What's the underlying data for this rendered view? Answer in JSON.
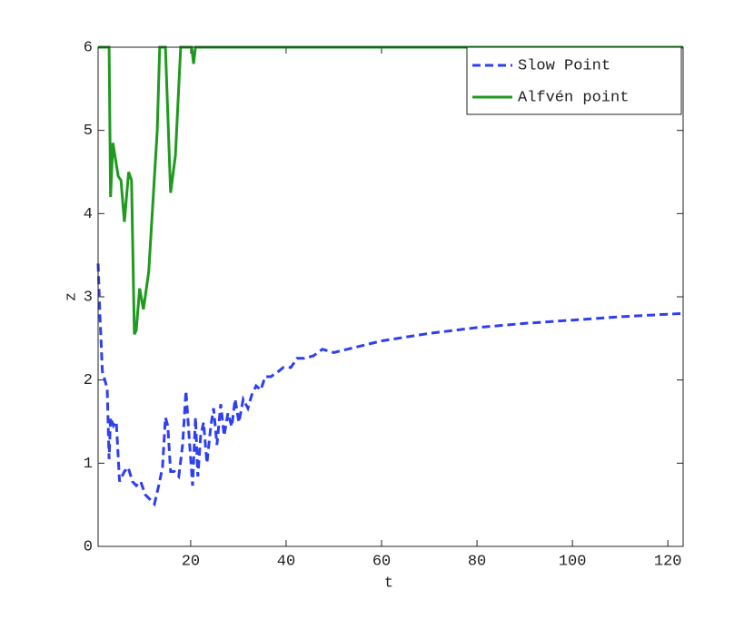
{
  "chart_data": {
    "type": "line",
    "xlabel": "t",
    "ylabel": "z",
    "xlim": [
      0.6,
      123.2
    ],
    "ylim": [
      0,
      6
    ],
    "xticks": [
      20,
      40,
      60,
      80,
      100,
      120
    ],
    "yticks": [
      0,
      1,
      2,
      3,
      4,
      5,
      6
    ],
    "legend": "upper right",
    "series": [
      {
        "name": "Slow Point",
        "color": "#2e3ff0",
        "dash": true,
        "x": [
          0.6,
          1,
          1.5,
          2.5,
          2.9,
          3.2,
          3.8,
          4.4,
          5.1,
          6.1,
          6.9,
          7.8,
          8.6,
          9.5,
          10.5,
          11.4,
          12.4,
          13.3,
          14.1,
          14.7,
          15.2,
          15.8,
          16.6,
          17.5,
          18.3,
          19,
          19.6,
          20.4,
          21,
          21.5,
          22.1,
          22.7,
          23.4,
          24.2,
          24.8,
          25.5,
          26.3,
          27,
          27.8,
          28.6,
          29.3,
          30.1,
          31,
          32,
          32.8,
          33.7,
          34.7,
          35.6,
          36.8,
          38.1,
          39.4,
          41,
          42.3,
          43.8,
          45.7,
          47.6,
          50,
          60,
          70,
          80,
          90,
          100,
          110,
          123.2
        ],
        "values": [
          3.4,
          2.75,
          2.1,
          1.9,
          1.05,
          1.55,
          1.45,
          1.5,
          0.78,
          0.9,
          0.95,
          0.78,
          0.73,
          0.78,
          0.62,
          0.57,
          0.51,
          0.73,
          0.95,
          1.55,
          1.45,
          0.9,
          0.9,
          0.84,
          1.22,
          1.87,
          1.38,
          0.73,
          1.55,
          0.84,
          1.33,
          1.49,
          1.0,
          1.44,
          1.66,
          1.22,
          1.71,
          1.33,
          1.6,
          1.44,
          1.77,
          1.49,
          1.77,
          1.66,
          1.82,
          1.93,
          1.88,
          2.04,
          2.04,
          2.09,
          2.15,
          2.15,
          2.26,
          2.26,
          2.29,
          2.37,
          2.33,
          2.47,
          2.56,
          2.63,
          2.68,
          2.72,
          2.76,
          2.8
        ]
      },
      {
        "name": "Alfvén point",
        "color": "#1f9a1f",
        "dash": false,
        "x": [
          0.6,
          2.9,
          3.2,
          3.7,
          4.8,
          5.4,
          6.1,
          7,
          7.6,
          8.2,
          8.6,
          9.3,
          10.1,
          11.2,
          13,
          13.5,
          14.7,
          15.8,
          16.8,
          17.9,
          20.2,
          20.6,
          21,
          123.2
        ],
        "values": [
          6,
          6,
          4.2,
          4.85,
          4.45,
          4.4,
          3.9,
          4.5,
          4.4,
          2.55,
          2.6,
          3.1,
          2.85,
          3.3,
          5.0,
          6,
          6,
          4.25,
          4.7,
          6,
          6,
          5.8,
          6,
          6
        ]
      }
    ]
  }
}
